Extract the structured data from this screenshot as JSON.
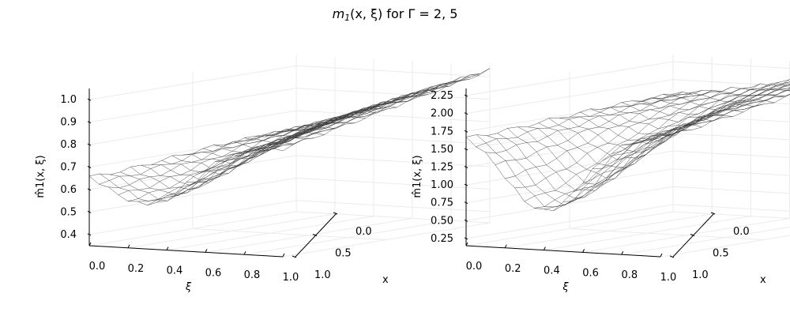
{
  "title": {
    "prefix": "m",
    "subscript": "1",
    "suffix": "(x, ξ) for Γ = 2, 5"
  },
  "chart_data": [
    {
      "type": "surface",
      "gamma": 2,
      "xlabel": "ξ",
      "ylabel": "x",
      "zlabel": "m̂1(x, ξ)",
      "xi_ticks": [
        "0.0",
        "0.2",
        "0.4",
        "0.6",
        "0.8",
        "1.0"
      ],
      "x_ticks": [
        "0.0",
        "0.5",
        "1.0"
      ],
      "z_ticks": [
        "0.4",
        "0.5",
        "0.6",
        "0.7",
        "0.8",
        "0.9",
        "1.0"
      ],
      "zlim": [
        0.35,
        1.05
      ],
      "grid_size": 20,
      "surface": {
        "corner_x0_xi0": 0.72,
        "corner_x0_xi1": 1.03,
        "corner_x1_xi0": 0.72,
        "corner_x1_xi1": 0.83,
        "min_x": 1.0,
        "min_xi": 0.3,
        "min_value": 0.55
      }
    },
    {
      "type": "surface",
      "gamma": 5,
      "xlabel": "ξ",
      "ylabel": "x",
      "zlabel": "m̂1(x, ξ)",
      "xi_ticks": [
        "0.0",
        "0.2",
        "0.4",
        "0.6",
        "0.8",
        "1.0"
      ],
      "x_ticks": [
        "0.0",
        "0.5",
        "1.0"
      ],
      "z_ticks": [
        "0.25",
        "0.50",
        "0.75",
        "1.00",
        "1.25",
        "1.50",
        "1.75",
        "2.00",
        "2.25"
      ],
      "zlim": [
        0.15,
        2.35
      ],
      "grid_size": 20,
      "surface": {
        "corner_x0_xi0": 1.8,
        "corner_x0_xi1": 2.3,
        "corner_x1_xi0": 1.8,
        "corner_x1_xi1": 1.8,
        "min_x": 1.0,
        "min_xi": 0.4,
        "min_value": 0.7
      }
    }
  ]
}
